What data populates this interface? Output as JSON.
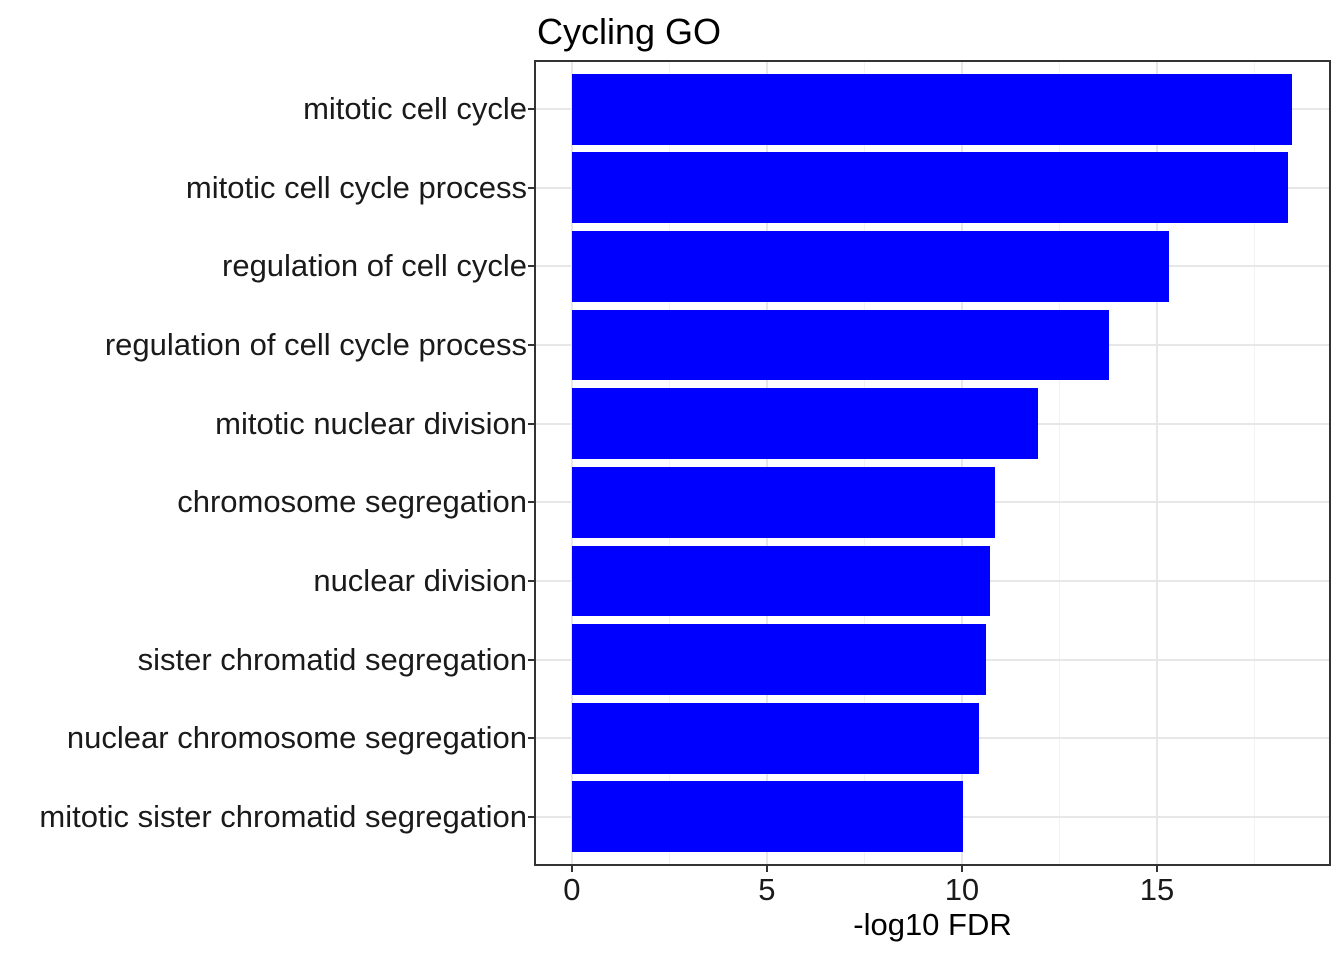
{
  "chart_data": {
    "type": "bar",
    "orientation": "horizontal",
    "title": "Cycling GO",
    "xlabel": "-log10 FDR",
    "ylabel": "",
    "categories": [
      "mitotic cell cycle",
      "mitotic cell cycle process",
      "regulation of cell cycle",
      "regulation of cell cycle process",
      "mitotic nuclear division",
      "chromosome segregation",
      "nuclear division",
      "sister chromatid segregation",
      "nuclear chromosome segregation",
      "mitotic sister chromatid segregation"
    ],
    "values": [
      18.45,
      18.37,
      15.32,
      13.76,
      11.95,
      10.84,
      10.71,
      10.61,
      10.44,
      10.04
    ],
    "xlim": [
      -0.92,
      19.41
    ],
    "x_major_ticks": [
      0,
      5,
      10,
      15
    ],
    "x_tick_labels": [
      "0",
      "5",
      "10",
      "15"
    ],
    "x_minor_ticks": [
      2.5,
      7.5,
      12.5,
      17.5
    ],
    "grid": true,
    "legend_position": "none",
    "colors": {
      "bar": "#0000ff",
      "panel_border": "#333333",
      "grid_major": "#e7e7e7",
      "grid_minor": "#f2f2f2",
      "tick_mark": "#333333",
      "axis_text": "#1a1a1a",
      "title_text": "#000000"
    }
  }
}
